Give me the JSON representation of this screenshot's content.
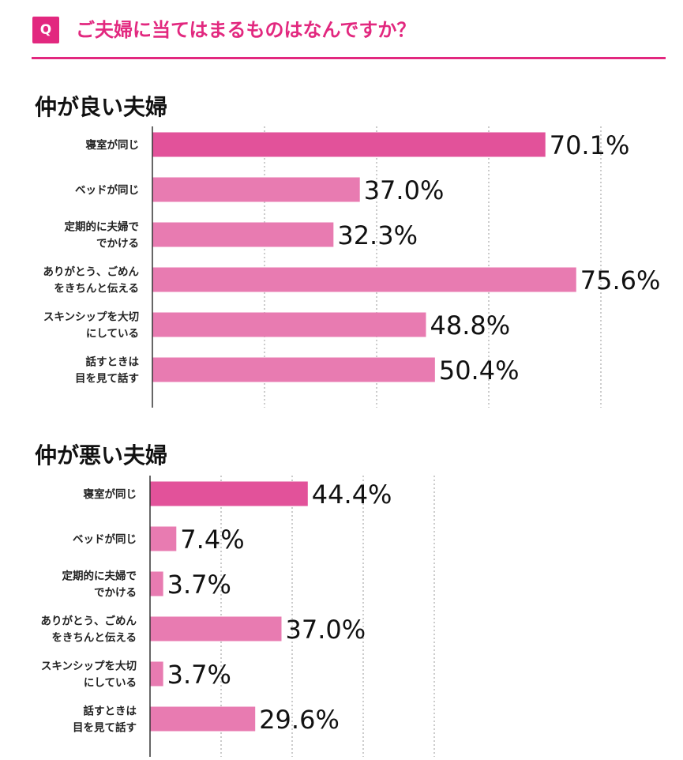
{
  "header": {
    "badge": "Q",
    "question": "ご夫婦に当てはまるものはなんですか？"
  },
  "colors": {
    "accent": "#e2287f",
    "highlight_bar": "#e2529a",
    "bar": "#e87bb1",
    "grid": "#9a9a9a"
  },
  "chart_data": [
    {
      "type": "bar",
      "orientation": "horizontal",
      "title": "仲が良い夫婦",
      "categories": [
        [
          "寝室が同じ"
        ],
        [
          "ベッドが同じ"
        ],
        [
          "定期的に夫婦で",
          "でかける"
        ],
        [
          "ありがとう、ごめん",
          "をきちんと伝える"
        ],
        [
          "スキンシップを大切",
          "にしている"
        ],
        [
          "話すときは",
          "目を見て話す"
        ]
      ],
      "values": [
        70.1,
        37.0,
        32.3,
        75.6,
        48.8,
        50.4
      ],
      "value_labels": [
        "70.1%",
        "37.0%",
        "32.3%",
        "75.6%",
        "48.8%",
        "50.4%"
      ],
      "highlight_index": 0,
      "xlim": [
        0,
        100
      ],
      "grid": true,
      "grid_style": "dotted vertical"
    },
    {
      "type": "bar",
      "orientation": "horizontal",
      "title": "仲が悪い夫婦",
      "categories": [
        [
          "寝室が同じ"
        ],
        [
          "ベッドが同じ"
        ],
        [
          "定期的に夫婦で",
          "でかける"
        ],
        [
          "ありがとう、ごめん",
          "をきちんと伝える"
        ],
        [
          "スキンシップを大切",
          "にしている"
        ],
        [
          "話すときは",
          "目を見て話す"
        ]
      ],
      "values": [
        44.4,
        7.4,
        3.7,
        37.0,
        3.7,
        29.6
      ],
      "value_labels": [
        "44.4%",
        "7.4%",
        "3.7%",
        "37.0%",
        "3.7%",
        "29.6%"
      ],
      "highlight_index": 0,
      "xlim": [
        0,
        100
      ],
      "grid": true,
      "grid_style": "dotted vertical"
    }
  ]
}
